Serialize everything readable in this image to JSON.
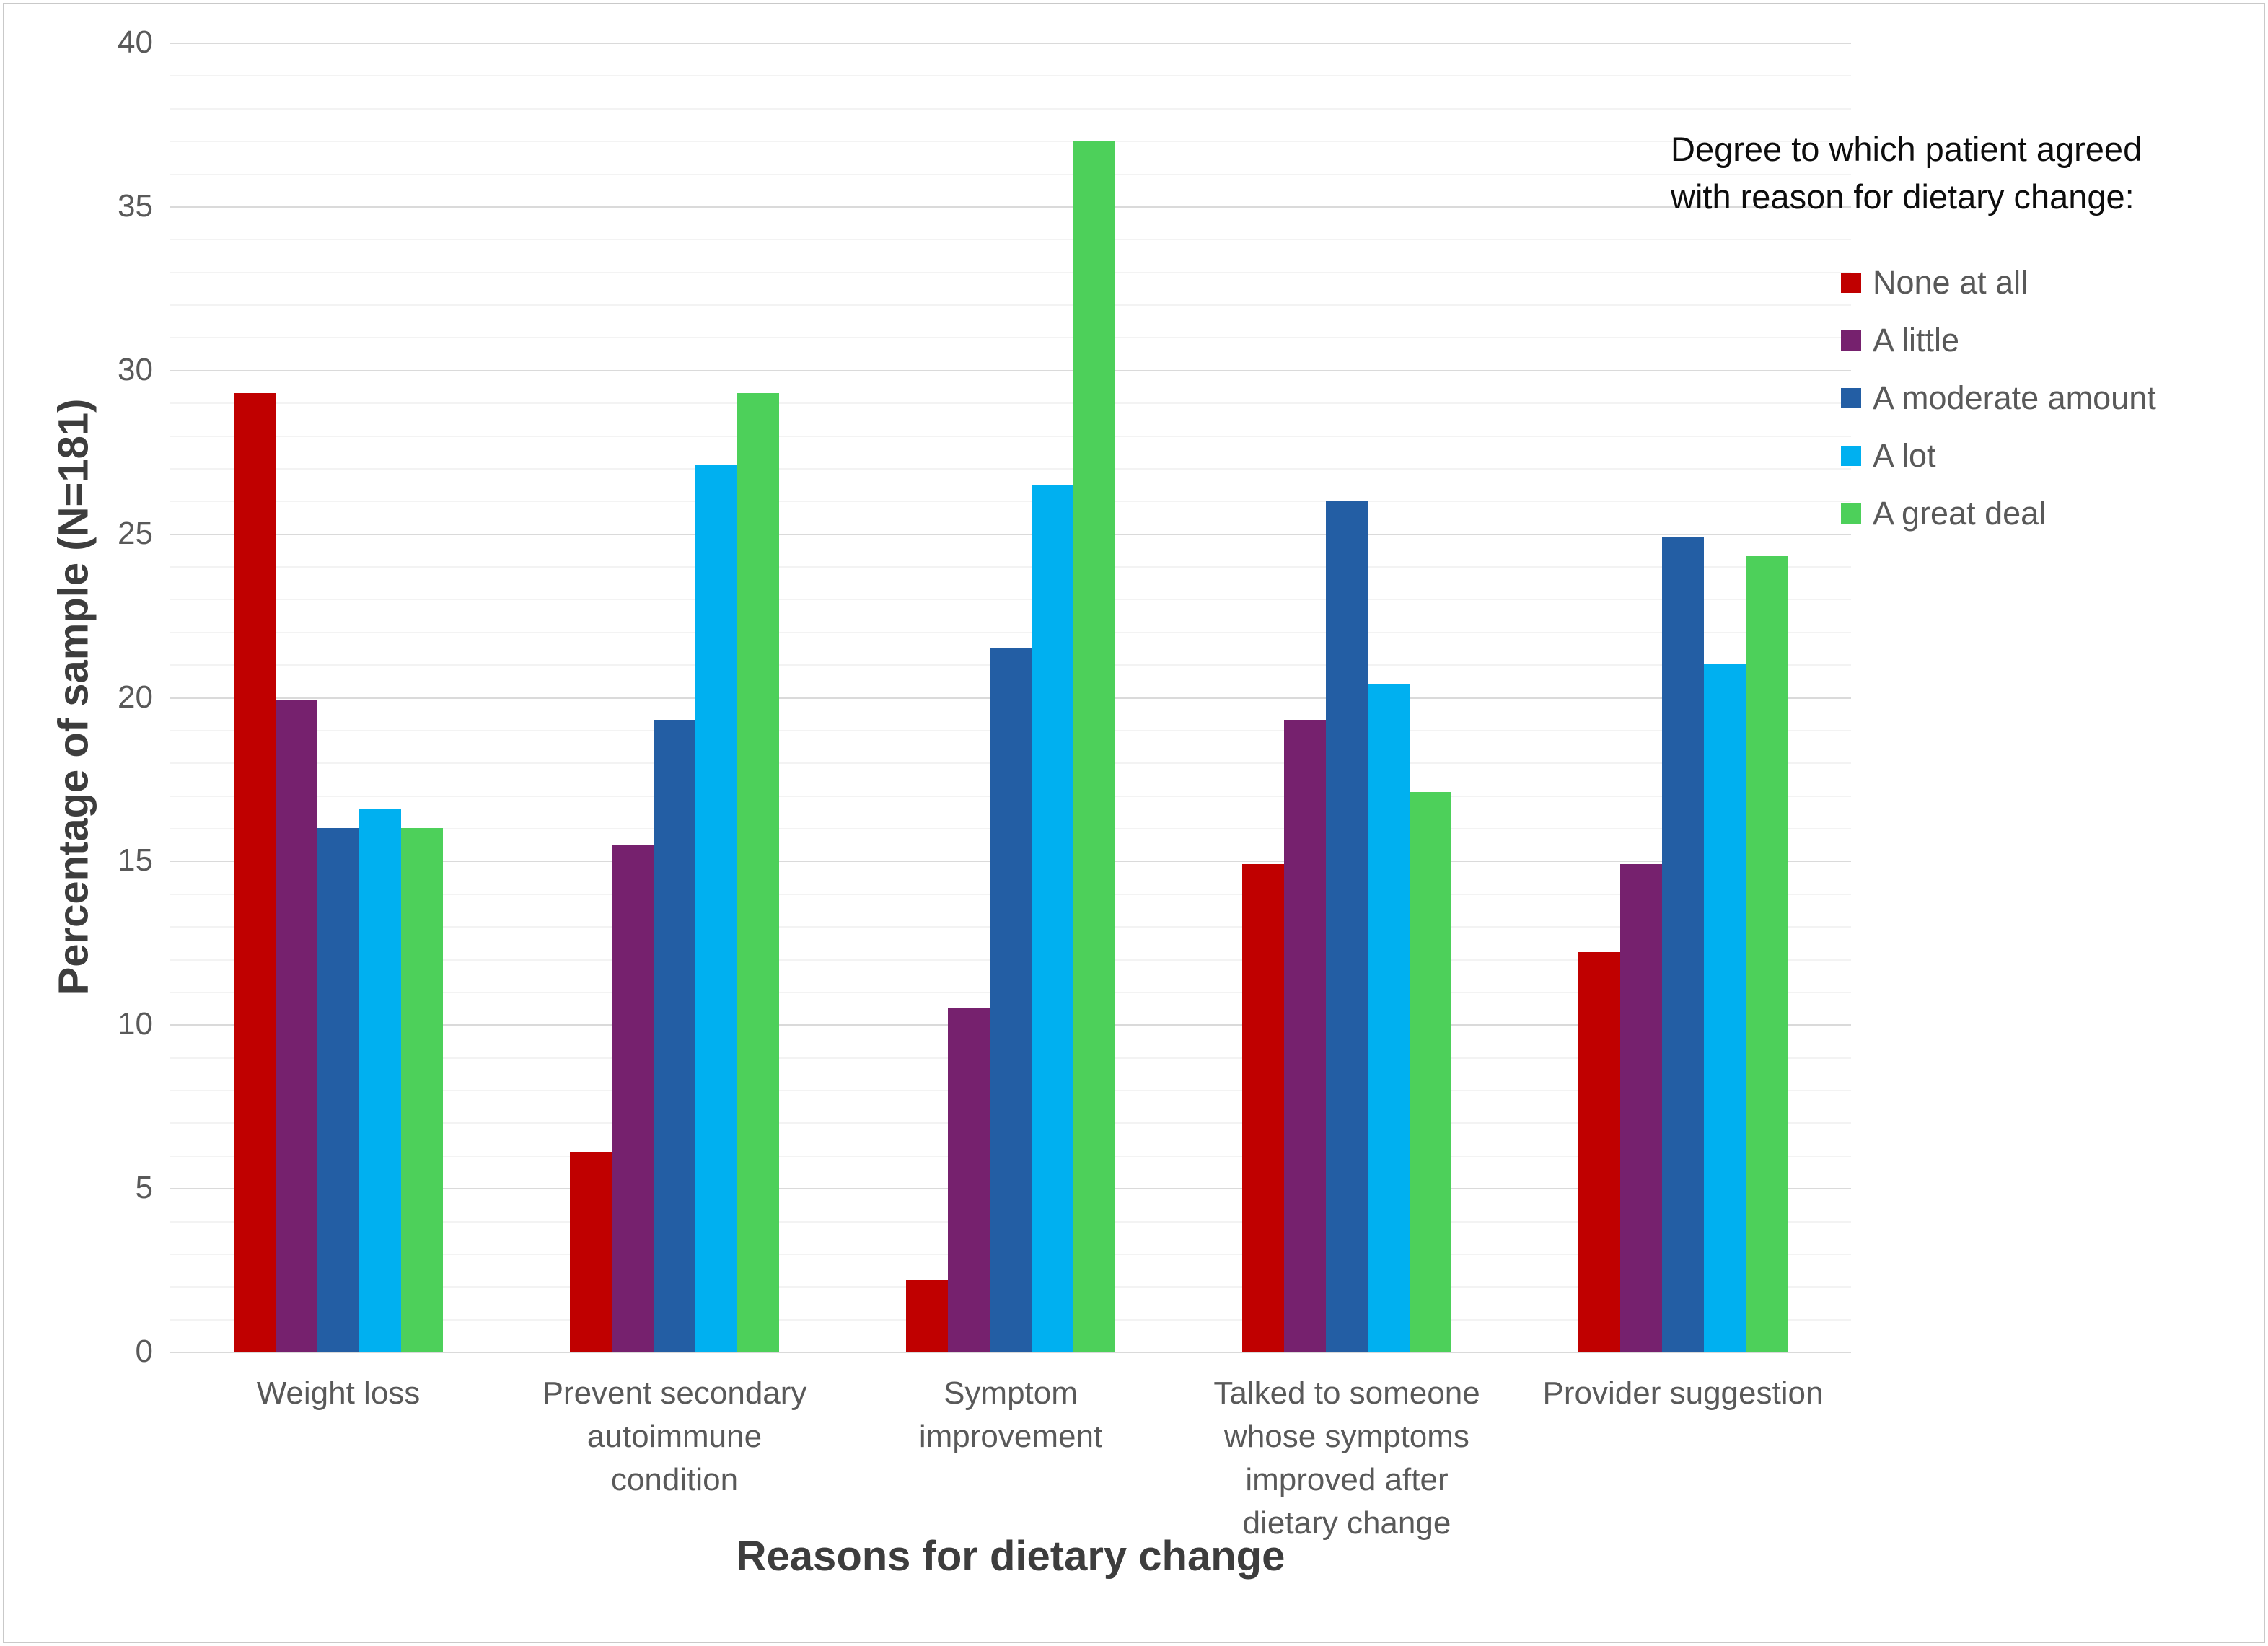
{
  "chart_data": {
    "type": "bar",
    "title": "",
    "ylabel": "Percentage of sample (N=181)",
    "xlabel": "Reasons for dietary change",
    "ylim": [
      0,
      40
    ],
    "y_major_step": 5,
    "y_minor_step": 1,
    "y_tick_labels": [
      "0",
      "5",
      "10",
      "15",
      "20",
      "25",
      "30",
      "35",
      "40"
    ],
    "grid": "horizontal, minor lines every 1, major lines every 5",
    "legend_position": "top-right",
    "legend_title_lines": [
      "Degree to which patient agreed",
      "with reason for dietary change:"
    ],
    "categories": [
      "Weight loss",
      "Prevent secondary autoimmune condition",
      "Symptom improvement",
      "Talked to someone whose symptoms improved after dietary change",
      "Provider suggestion"
    ],
    "category_label_lines": [
      [
        "Weight loss"
      ],
      [
        "Prevent secondary",
        "autoimmune",
        "condition"
      ],
      [
        "Symptom",
        "improvement"
      ],
      [
        "Talked to someone",
        "whose symptoms",
        "improved after",
        "dietary change"
      ],
      [
        "Provider suggestion"
      ]
    ],
    "series": [
      {
        "name": "None at all",
        "color": "#C00000",
        "values": [
          29.3,
          6.1,
          2.2,
          14.9,
          12.2
        ]
      },
      {
        "name": "A little",
        "color": "#76216E",
        "values": [
          19.9,
          15.5,
          10.5,
          19.3,
          14.9
        ]
      },
      {
        "name": "A moderate amount",
        "color": "#235EA4",
        "values": [
          16.0,
          19.3,
          21.5,
          26.0,
          24.9
        ]
      },
      {
        "name": "A lot",
        "color": "#00B0F0",
        "values": [
          16.6,
          27.1,
          26.5,
          20.4,
          21.0
        ]
      },
      {
        "name": "A great deal",
        "color": "#4DD05A",
        "values": [
          16.0,
          29.3,
          37.0,
          17.1,
          24.3
        ]
      }
    ]
  },
  "colors": {
    "background": "#FFFFFF",
    "frame_border": "#C9C9C9",
    "grid_minor": "#F3F3F3",
    "grid_major": "#DADADA",
    "tick_text": "#595959",
    "axis_title_text": "#3D3D3D",
    "legend_title_text": "#0D0D0D",
    "legend_item_text": "#595959"
  }
}
